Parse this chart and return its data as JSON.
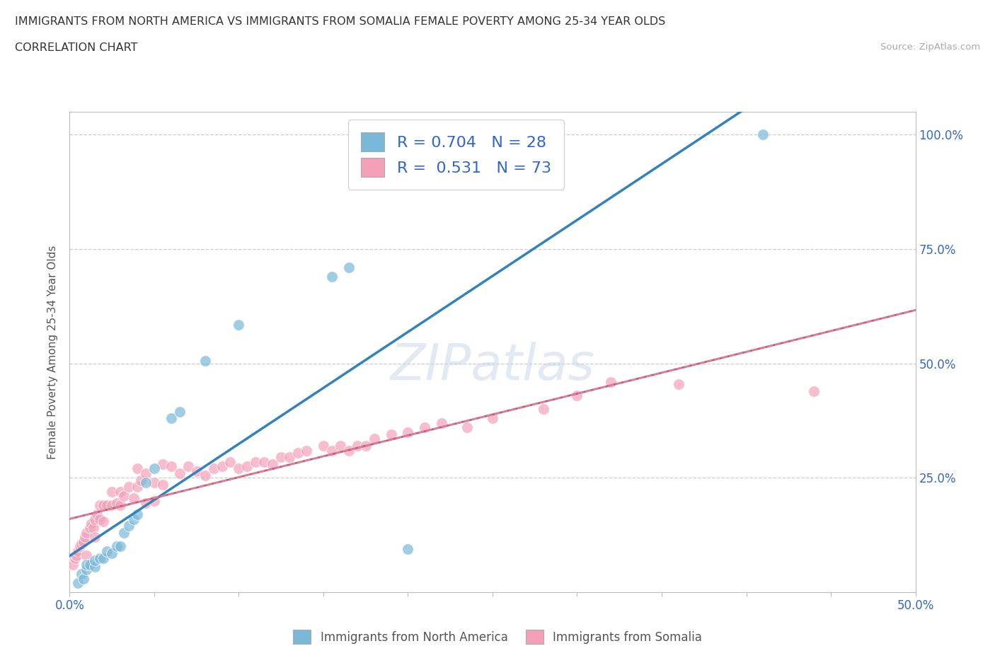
{
  "title_line1": "IMMIGRANTS FROM NORTH AMERICA VS IMMIGRANTS FROM SOMALIA FEMALE POVERTY AMONG 25-34 YEAR OLDS",
  "title_line2": "CORRELATION CHART",
  "source_text": "Source: ZipAtlas.com",
  "ylabel": "Female Poverty Among 25-34 Year Olds",
  "xlim": [
    0.0,
    0.5
  ],
  "ylim": [
    0.0,
    1.05
  ],
  "ytick_positions": [
    0.0,
    0.25,
    0.5,
    0.75,
    1.0
  ],
  "yticklabels": [
    "",
    "25.0%",
    "50.0%",
    "75.0%",
    "100.0%"
  ],
  "xticks": [
    0.0,
    0.05,
    0.1,
    0.15,
    0.2,
    0.25,
    0.3,
    0.35,
    0.4,
    0.45,
    0.5
  ],
  "blue_scatter_color": "#7ab8d9",
  "pink_scatter_color": "#f4a0b8",
  "trend_blue_color": "#3182bd",
  "trend_pink_color": "#d9536e",
  "trend_pink_dash_color": "#c8a0b8",
  "watermark": "ZIPatlas",
  "legend_R_blue": "0.704",
  "legend_N_blue": "28",
  "legend_R_pink": "0.531",
  "legend_N_pink": "73",
  "blue_points_x": [
    0.005,
    0.007,
    0.008,
    0.01,
    0.01,
    0.012,
    0.015,
    0.015,
    0.018,
    0.02,
    0.022,
    0.025,
    0.028,
    0.03,
    0.032,
    0.035,
    0.038,
    0.04,
    0.045,
    0.05,
    0.06,
    0.065,
    0.08,
    0.1,
    0.155,
    0.165,
    0.2,
    0.41
  ],
  "blue_points_y": [
    0.02,
    0.04,
    0.03,
    0.05,
    0.06,
    0.06,
    0.055,
    0.07,
    0.075,
    0.075,
    0.09,
    0.085,
    0.1,
    0.1,
    0.13,
    0.145,
    0.16,
    0.17,
    0.24,
    0.27,
    0.38,
    0.395,
    0.505,
    0.585,
    0.69,
    0.71,
    0.095,
    1.0
  ],
  "pink_points_x": [
    0.002,
    0.003,
    0.004,
    0.005,
    0.006,
    0.007,
    0.008,
    0.009,
    0.01,
    0.01,
    0.012,
    0.013,
    0.014,
    0.015,
    0.015,
    0.016,
    0.018,
    0.018,
    0.02,
    0.02,
    0.022,
    0.025,
    0.025,
    0.028,
    0.03,
    0.03,
    0.032,
    0.035,
    0.038,
    0.04,
    0.04,
    0.042,
    0.045,
    0.045,
    0.05,
    0.05,
    0.055,
    0.055,
    0.06,
    0.065,
    0.07,
    0.075,
    0.08,
    0.085,
    0.09,
    0.095,
    0.1,
    0.105,
    0.11,
    0.115,
    0.12,
    0.125,
    0.13,
    0.135,
    0.14,
    0.15,
    0.155,
    0.16,
    0.165,
    0.17,
    0.175,
    0.18,
    0.19,
    0.2,
    0.21,
    0.22,
    0.235,
    0.25,
    0.28,
    0.3,
    0.32,
    0.36,
    0.44
  ],
  "pink_points_y": [
    0.06,
    0.075,
    0.08,
    0.09,
    0.1,
    0.105,
    0.11,
    0.12,
    0.08,
    0.13,
    0.14,
    0.15,
    0.14,
    0.12,
    0.16,
    0.17,
    0.16,
    0.19,
    0.155,
    0.19,
    0.19,
    0.19,
    0.22,
    0.195,
    0.19,
    0.22,
    0.21,
    0.23,
    0.205,
    0.23,
    0.27,
    0.245,
    0.195,
    0.26,
    0.2,
    0.24,
    0.235,
    0.28,
    0.275,
    0.26,
    0.275,
    0.265,
    0.255,
    0.27,
    0.275,
    0.285,
    0.27,
    0.275,
    0.285,
    0.285,
    0.28,
    0.295,
    0.295,
    0.305,
    0.31,
    0.32,
    0.31,
    0.32,
    0.31,
    0.32,
    0.32,
    0.335,
    0.345,
    0.35,
    0.36,
    0.37,
    0.36,
    0.38,
    0.4,
    0.43,
    0.46,
    0.455,
    0.44
  ]
}
